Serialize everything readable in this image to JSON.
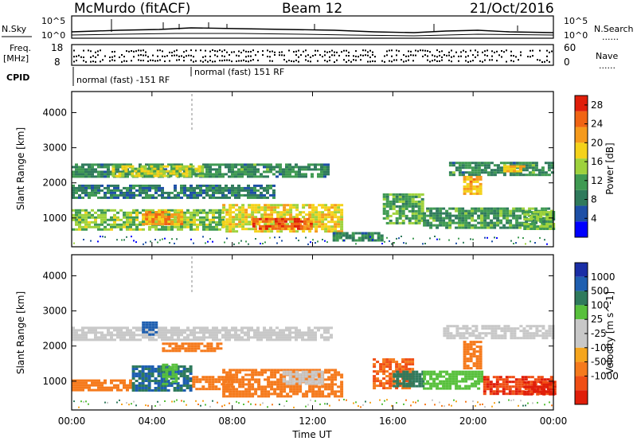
{
  "header": {
    "station": "McMurdo (fitACF)",
    "beam": "Beam 12",
    "date": "21/Oct/2016"
  },
  "top_panels": {
    "nsky_label": "N.Sky",
    "nsky_ticks": [
      "10^5",
      "10^0"
    ],
    "nsearch_label": "N.Search",
    "nsearch_ticks": [
      "10^5",
      "10^0"
    ],
    "freq_label_1": "Freq.",
    "freq_label_2": "[MHz]",
    "freq_ticks": [
      "18",
      "8"
    ],
    "nave_label": "Nave",
    "nave_ticks": [
      "60",
      "0"
    ],
    "cpid_label": "CPID",
    "cpid_segments": [
      "normal (fast) -151 RF",
      "normal (fast) 151 RF"
    ],
    "dotted_marker": "......"
  },
  "colors": {
    "power_scale": [
      "#0000ff",
      "#1d4fa6",
      "#2f7a5c",
      "#3f9a52",
      "#9ed23c",
      "#f4d21a",
      "#f59a1c",
      "#f06414",
      "#e01e0a"
    ],
    "velocity_scale": [
      "#1a2ea6",
      "#1f5fb0",
      "#2f7a5c",
      "#58c03c",
      "#c8c8c8",
      "#c8c8c8",
      "#f5a51e",
      "#f57a1c",
      "#f04e14",
      "#e01e0a"
    ]
  },
  "chart_data": [
    {
      "type": "heatmap",
      "title": "",
      "xlabel": "",
      "ylabel": "Slant Range [km]",
      "xlim": [
        "00:00",
        "24:00"
      ],
      "ylim": [
        180,
        4600
      ],
      "x_tick_labels": [
        "00:00",
        "04:00",
        "08:00",
        "12:00",
        "16:00",
        "20:00",
        "00:00"
      ],
      "y_ticks": [
        1000,
        2000,
        3000,
        4000
      ],
      "colorbar": {
        "label": "Power [dB]",
        "ticks": [
          4,
          8,
          12,
          16,
          20,
          24,
          28
        ],
        "range": [
          0,
          30
        ]
      },
      "regions": [
        {
          "t0": 0.0,
          "t1": 12.8,
          "r0": 2150,
          "r1": 2550,
          "value": 10
        },
        {
          "t0": 2.0,
          "t1": 6.5,
          "r0": 2200,
          "r1": 2500,
          "value": 16
        },
        {
          "t0": 0.0,
          "t1": 10.0,
          "r0": 1550,
          "r1": 1950,
          "value": 8
        },
        {
          "t0": 0.0,
          "t1": 7.5,
          "r0": 700,
          "r1": 1250,
          "value": 14
        },
        {
          "t0": 3.5,
          "t1": 5.5,
          "r0": 850,
          "r1": 1200,
          "value": 22
        },
        {
          "t0": 7.5,
          "t1": 13.5,
          "r0": 650,
          "r1": 1400,
          "value": 18
        },
        {
          "t0": 9.0,
          "t1": 12.0,
          "r0": 700,
          "r1": 1000,
          "value": 26
        },
        {
          "t0": 15.5,
          "t1": 17.5,
          "r0": 850,
          "r1": 1700,
          "value": 12
        },
        {
          "t0": 17.5,
          "t1": 24.0,
          "r0": 750,
          "r1": 1300,
          "value": 11
        },
        {
          "t0": 18.8,
          "t1": 24.0,
          "r0": 2200,
          "r1": 2600,
          "value": 10
        },
        {
          "t0": 19.5,
          "t1": 20.3,
          "r0": 1700,
          "r1": 2200,
          "value": 20
        },
        {
          "t0": 21.5,
          "t1": 22.5,
          "r0": 2300,
          "r1": 2500,
          "value": 20
        },
        {
          "t0": 22.5,
          "t1": 24.0,
          "r0": 700,
          "r1": 1200,
          "value": 13
        },
        {
          "t0": 13.0,
          "t1": 15.5,
          "r0": 350,
          "r1": 600,
          "value": 9
        }
      ]
    },
    {
      "type": "heatmap",
      "title": "",
      "xlabel": "Time UT",
      "ylabel": "Slant Range [km]",
      "xlim": [
        "00:00",
        "24:00"
      ],
      "ylim": [
        180,
        4600
      ],
      "x_tick_labels": [
        "00:00",
        "04:00",
        "08:00",
        "12:00",
        "16:00",
        "20:00",
        "00:00"
      ],
      "y_ticks": [
        1000,
        2000,
        3000,
        4000
      ],
      "colorbar": {
        "label": "Velocity [m s^-1]",
        "ticks": [
          1000,
          500,
          100,
          25,
          -25,
          -100,
          -500,
          -1000
        ],
        "range": [
          -1000,
          1000
        ]
      },
      "regions": [
        {
          "t0": 0.0,
          "t1": 13.0,
          "r0": 2150,
          "r1": 2550,
          "value": 0
        },
        {
          "t0": 18.5,
          "t1": 24.0,
          "r0": 2200,
          "r1": 2600,
          "value": 0
        },
        {
          "t0": 3.5,
          "t1": 4.2,
          "r0": 2300,
          "r1": 2700,
          "value": 500
        },
        {
          "t0": 4.5,
          "t1": 7.5,
          "r0": 1850,
          "r1": 2100,
          "value": -150
        },
        {
          "t0": 0.0,
          "t1": 3.0,
          "r0": 750,
          "r1": 1050,
          "value": -150
        },
        {
          "t0": 3.0,
          "t1": 6.0,
          "r0": 750,
          "r1": 1450,
          "value": 300
        },
        {
          "t0": 4.5,
          "t1": 5.2,
          "r0": 900,
          "r1": 1500,
          "value": 60
        },
        {
          "t0": 6.0,
          "t1": 8.0,
          "r0": 750,
          "r1": 1150,
          "value": -200
        },
        {
          "t0": 7.5,
          "t1": 13.5,
          "r0": 600,
          "r1": 1350,
          "value": -150
        },
        {
          "t0": 10.5,
          "t1": 12.5,
          "r0": 900,
          "r1": 1300,
          "value": 0
        },
        {
          "t0": 15.0,
          "t1": 17.0,
          "r0": 800,
          "r1": 1650,
          "value": -300
        },
        {
          "t0": 16.0,
          "t1": 17.5,
          "r0": 850,
          "r1": 1300,
          "value": 150
        },
        {
          "t0": 17.5,
          "t1": 20.5,
          "r0": 800,
          "r1": 1300,
          "value": 60
        },
        {
          "t0": 19.5,
          "t1": 20.3,
          "r0": 1400,
          "r1": 2150,
          "value": -200
        },
        {
          "t0": 20.5,
          "t1": 24.0,
          "r0": 650,
          "r1": 1150,
          "value": -700
        },
        {
          "t0": 22.5,
          "t1": 24.0,
          "r0": 650,
          "r1": 1000,
          "value": -1000
        }
      ]
    }
  ]
}
